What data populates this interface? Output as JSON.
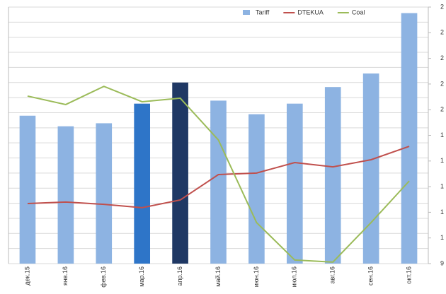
{
  "chart_data": {
    "type": "bar-line",
    "categories": [
      "дек.15",
      "янв.16",
      "фев.16",
      "мар.16",
      "апр.16",
      "май.16",
      "июн.16",
      "июл.16",
      "авг.16",
      "сен.16",
      "окт.16"
    ],
    "series": [
      {
        "name": "Tariff",
        "type": "bar",
        "color": "#8db3e2",
        "colors": [
          "#8db3e2",
          "#8db3e2",
          "#8db3e2",
          "#2e75c8",
          "#1f3864",
          "#8db3e2",
          "#8db3e2",
          "#8db3e2",
          "#8db3e2",
          "#8db3e2",
          "#8db3e2"
        ],
        "values": [
          9.8,
          9.1,
          9.3,
          10.6,
          12.0,
          10.8,
          9.9,
          10.6,
          11.7,
          12.6,
          16.6
        ]
      },
      {
        "name": "DTEKUA",
        "type": "line",
        "axis": "y2",
        "color": "#c0504d",
        "values": [
          2.34,
          2.4,
          2.31,
          2.18,
          2.48,
          3.47,
          3.53,
          3.94,
          3.77,
          4.05,
          4.57
        ]
      },
      {
        "name": "Coal",
        "type": "line",
        "axis": "y2",
        "color": "#9bbb59",
        "values": [
          6.53,
          6.2,
          6.91,
          6.31,
          6.45,
          4.82,
          1.6,
          0.14,
          0.06,
          1.6,
          3.22
        ]
      }
    ],
    "ylim": [
      0,
      17
    ],
    "yticks": [
      0,
      1,
      2,
      3,
      4,
      5,
      6,
      7,
      8,
      9,
      10,
      11,
      12,
      13,
      14,
      15,
      16,
      17
    ],
    "grid": true,
    "y2lim": [
      0,
      10
    ],
    "y2ticks": [
      {
        "value": 0,
        "label": "9"
      },
      {
        "value": 1,
        "label": "1"
      },
      {
        "value": 2,
        "label": "1"
      },
      {
        "value": 3,
        "label": "1"
      },
      {
        "value": 4,
        "label": "1"
      },
      {
        "value": 5,
        "label": "1"
      },
      {
        "value": 6,
        "label": "2"
      },
      {
        "value": 7,
        "label": "2"
      },
      {
        "value": 8,
        "label": "2"
      },
      {
        "value": 9,
        "label": "2"
      },
      {
        "value": 10,
        "label": "2"
      }
    ],
    "legend": "top-right"
  }
}
